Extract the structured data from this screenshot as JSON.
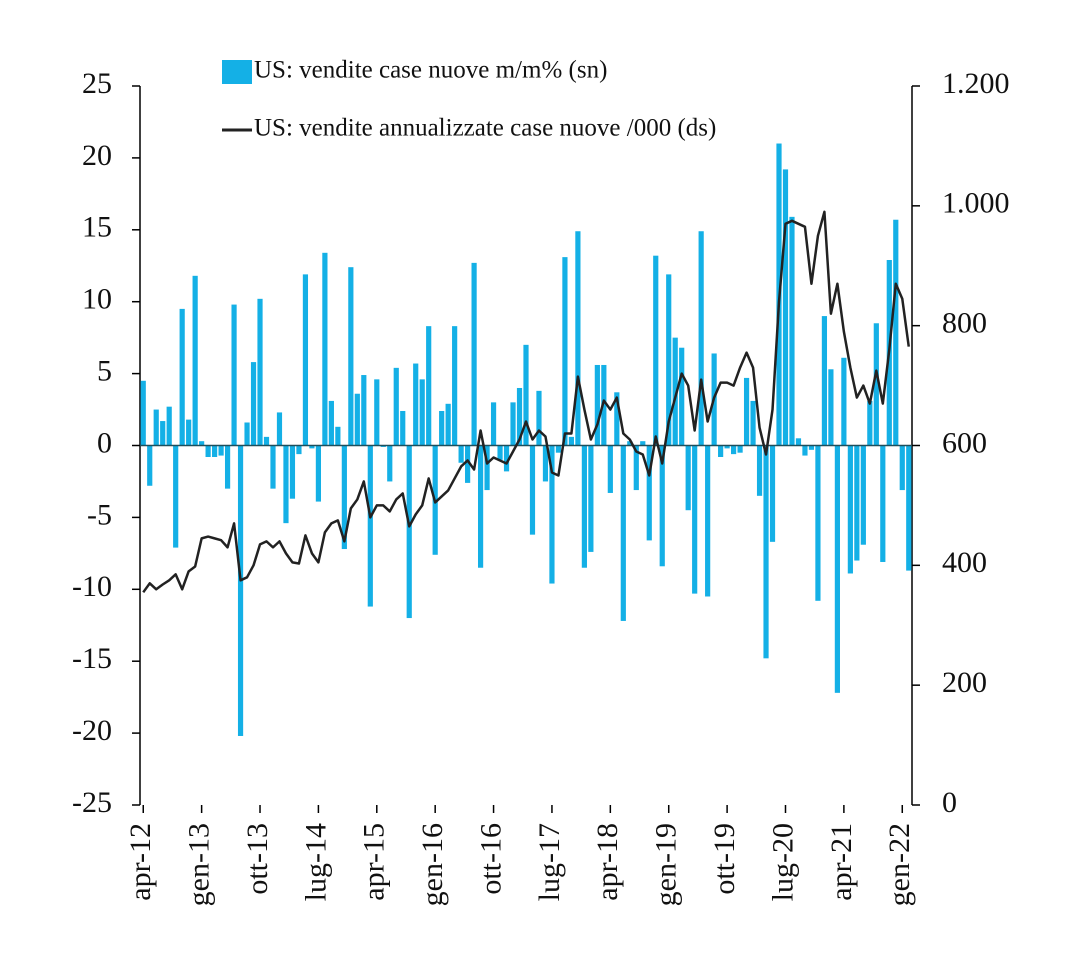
{
  "chart_data": {
    "type": "bar_line",
    "categories": [
      "apr-12",
      null,
      null,
      null,
      null,
      null,
      null,
      null,
      null,
      "gen-13",
      null,
      null,
      null,
      null,
      null,
      null,
      null,
      null,
      "ott-13",
      null,
      null,
      null,
      null,
      null,
      null,
      null,
      null,
      "lug-14",
      null,
      null,
      null,
      null,
      null,
      null,
      null,
      null,
      "apr-15",
      null,
      null,
      null,
      null,
      null,
      null,
      null,
      null,
      "gen-16",
      null,
      null,
      null,
      null,
      null,
      null,
      null,
      null,
      "ott-16",
      null,
      null,
      null,
      null,
      null,
      null,
      null,
      null,
      "lug-17",
      null,
      null,
      null,
      null,
      null,
      null,
      null,
      null,
      "apr-18",
      null,
      null,
      null,
      null,
      null,
      null,
      null,
      null,
      "gen-19",
      null,
      null,
      null,
      null,
      null,
      null,
      null,
      null,
      "ott-19",
      null,
      null,
      null,
      null,
      null,
      null,
      null,
      null,
      "lug-20",
      null,
      null,
      null,
      null,
      null,
      null,
      null,
      null,
      "apr-21",
      null,
      null,
      null,
      null,
      null,
      null,
      null,
      null,
      "gen-22",
      null
    ],
    "series": [
      {
        "name": "US: vendite case nuove m/m% (sn)",
        "type": "bar",
        "color": "#14b0e6",
        "values": [
          4.5,
          -2.8,
          2.5,
          1.7,
          2.7,
          -7.1,
          9.5,
          1.8,
          11.8,
          0.3,
          -0.8,
          -0.8,
          -0.7,
          -3.0,
          9.8,
          -20.2,
          1.6,
          5.8,
          10.2,
          0.6,
          -3.0,
          2.3,
          -5.4,
          -3.7,
          -0.6,
          11.9,
          -0.2,
          -3.9,
          13.4,
          3.1,
          1.3,
          -7.2,
          12.4,
          3.6,
          4.9,
          -11.2,
          4.6,
          -0.1,
          -2.5,
          5.4,
          2.4,
          -12.0,
          5.7,
          4.6,
          8.3,
          -7.6,
          2.4,
          2.9,
          8.3,
          -1.2,
          -2.6,
          12.7,
          -8.5,
          -3.1,
          3.0,
          -1.0,
          -1.8,
          3.0,
          4.0,
          7.0,
          -6.2,
          3.8,
          -2.5,
          -9.6,
          -0.5,
          13.1,
          0.6,
          14.9,
          -8.5,
          -7.4,
          5.6,
          5.6,
          -3.3,
          3.7,
          -12.2,
          0.3,
          -3.1,
          0.3,
          -6.6,
          13.2,
          -8.4,
          11.9,
          7.5,
          6.8,
          -4.5,
          -10.3,
          14.9,
          -10.5,
          6.4,
          -0.8,
          -0.2,
          -0.6,
          -0.5,
          4.7,
          3.1,
          -3.5,
          -14.8,
          -6.7,
          21.0,
          19.2,
          15.9,
          0.5,
          -0.7,
          -0.3,
          -10.8,
          9.0,
          5.3,
          -17.2,
          6.1,
          -8.9,
          -8.0,
          -6.9,
          3.1,
          8.5,
          -8.1,
          12.9,
          15.7,
          -3.1,
          -8.7
        ]
      },
      {
        "name": "US: vendite annualizzate case nuove /000 (ds)",
        "type": "line",
        "axis": "y2",
        "color": "#222222",
        "values": [
          355,
          370,
          360,
          368,
          375,
          385,
          360,
          390,
          398,
          445,
          448,
          445,
          442,
          430,
          470,
          375,
          380,
          400,
          435,
          440,
          430,
          440,
          420,
          405,
          403,
          450,
          420,
          405,
          455,
          470,
          475,
          440,
          495,
          510,
          540,
          480,
          500,
          500,
          490,
          510,
          520,
          465,
          485,
          500,
          545,
          505,
          515,
          525,
          545,
          565,
          575,
          560,
          625,
          570,
          580,
          575,
          570,
          590,
          610,
          640,
          610,
          625,
          615,
          555,
          550,
          620,
          620,
          715,
          660,
          610,
          635,
          675,
          660,
          680,
          620,
          610,
          590,
          585,
          550,
          615,
          570,
          640,
          680,
          720,
          700,
          625,
          710,
          640,
          680,
          705,
          705,
          700,
          730,
          755,
          730,
          630,
          585,
          660,
          840,
          970,
          975,
          970,
          965,
          870,
          950,
          990,
          820,
          870,
          790,
          730,
          680,
          700,
          670,
          725,
          670,
          760,
          870,
          845,
          765
        ]
      }
    ],
    "ylim": [
      -25,
      25
    ],
    "yticks": [
      25,
      20,
      15,
      10,
      5,
      0,
      -5,
      -10,
      -15,
      -20,
      -25
    ],
    "y2lim": [
      0,
      1200
    ],
    "y2ticks": [
      0,
      200,
      400,
      600,
      800,
      {
        "value": 1000,
        "label": "1.000"
      },
      {
        "value": 1200,
        "label": "1.200"
      }
    ]
  }
}
